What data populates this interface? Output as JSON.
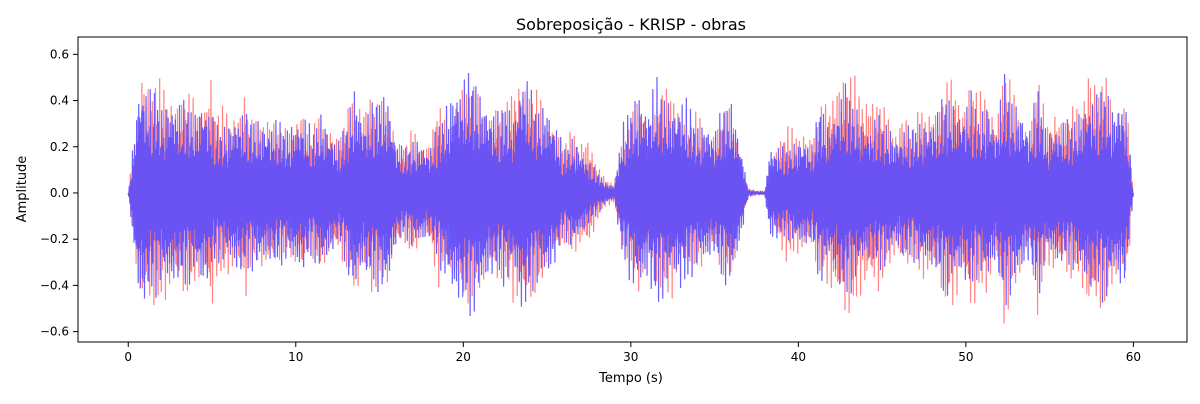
{
  "chart_data": {
    "type": "line",
    "title": "Sobreposição - KRISP - obras",
    "xlabel": "Tempo (s)",
    "ylabel": "Amplitude",
    "xlim": [
      -3,
      63.2
    ],
    "ylim": [
      -0.645,
      0.675
    ],
    "xticks": [
      0,
      10,
      20,
      30,
      40,
      50,
      60
    ],
    "xtick_labels": [
      "0",
      "10",
      "20",
      "30",
      "40",
      "50",
      "60"
    ],
    "yticks": [
      -0.6,
      -0.4,
      -0.2,
      0.0,
      0.2,
      0.4,
      0.6
    ],
    "ytick_labels": [
      "−0.6",
      "−0.4",
      "−0.2",
      "0.0",
      "0.2",
      "0.4",
      "0.6"
    ],
    "grid": false,
    "legend": "none",
    "series": [
      {
        "color": "#ff6f6f",
        "opacity": 0.85,
        "x_step": 0.25,
        "envelope": [
          [
            0.0,
            0.0
          ],
          [
            0.8,
            -0.55
          ],
          [
            1.0,
            0.52
          ],
          [
            1.3,
            -0.5
          ],
          [
            1.8,
            0.5
          ],
          [
            2.2,
            -0.48
          ],
          [
            2.6,
            0.42
          ],
          [
            2.9,
            -0.42
          ],
          [
            3.3,
            0.45
          ],
          [
            3.7,
            -0.44
          ],
          [
            4.2,
            0.38
          ],
          [
            4.6,
            -0.4
          ],
          [
            5.0,
            0.58
          ],
          [
            5.2,
            -0.37
          ],
          [
            5.7,
            0.38
          ],
          [
            6.2,
            -0.35
          ],
          [
            6.6,
            0.37
          ],
          [
            6.7,
            -0.38
          ],
          [
            7.0,
            0.5
          ],
          [
            7.2,
            -0.34
          ],
          [
            7.7,
            0.31
          ],
          [
            8.2,
            -0.35
          ],
          [
            8.6,
            0.35
          ],
          [
            9.0,
            -0.3
          ],
          [
            9.6,
            0.27
          ],
          [
            10.0,
            -0.33
          ],
          [
            10.4,
            0.39
          ],
          [
            10.8,
            -0.25
          ],
          [
            11.2,
            0.33
          ],
          [
            11.6,
            -0.32
          ],
          [
            12.0,
            0.3
          ],
          [
            12.5,
            -0.26
          ],
          [
            12.8,
            0.31
          ],
          [
            13.3,
            -0.4
          ],
          [
            13.7,
            0.44
          ],
          [
            14.0,
            -0.38
          ],
          [
            14.5,
            0.47
          ],
          [
            14.9,
            -0.4
          ],
          [
            15.5,
            0.4
          ],
          [
            16.0,
            -0.25
          ],
          [
            16.5,
            0.22
          ],
          [
            17.0,
            -0.29
          ],
          [
            17.5,
            0.2
          ],
          [
            18.0,
            -0.24
          ],
          [
            18.5,
            0.43
          ],
          [
            19.0,
            -0.28
          ],
          [
            19.5,
            0.4
          ],
          [
            20.0,
            -0.52
          ],
          [
            20.5,
            0.48
          ],
          [
            21.0,
            -0.43
          ],
          [
            21.5,
            0.36
          ],
          [
            22.0,
            -0.41
          ],
          [
            22.5,
            0.36
          ],
          [
            23.0,
            -0.5
          ],
          [
            23.5,
            0.52
          ],
          [
            24.0,
            -0.47
          ],
          [
            24.5,
            0.45
          ],
          [
            25.0,
            -0.31
          ],
          [
            25.5,
            0.3
          ],
          [
            26.0,
            -0.22
          ],
          [
            26.5,
            0.28
          ],
          [
            27.0,
            -0.24
          ],
          [
            27.5,
            0.25
          ],
          [
            28.0,
            -0.12
          ],
          [
            28.5,
            0.06
          ],
          [
            29.0,
            -0.05
          ],
          [
            29.5,
            0.25
          ],
          [
            30.0,
            -0.32
          ],
          [
            30.5,
            0.45
          ],
          [
            31.0,
            -0.3
          ],
          [
            31.5,
            0.4
          ],
          [
            32.0,
            -0.45
          ],
          [
            32.5,
            0.48
          ],
          [
            33.0,
            -0.35
          ],
          [
            33.5,
            0.3
          ],
          [
            34.0,
            -0.37
          ],
          [
            34.5,
            0.28
          ],
          [
            35.0,
            -0.28
          ],
          [
            35.5,
            0.37
          ],
          [
            36.0,
            -0.37
          ],
          [
            36.5,
            0.2
          ],
          [
            37.0,
            -0.02
          ],
          [
            37.5,
            0.01
          ],
          [
            38.0,
            -0.01
          ],
          [
            38.3,
            0.12
          ],
          [
            38.8,
            -0.23
          ],
          [
            39.3,
            0.31
          ],
          [
            39.8,
            -0.27
          ],
          [
            40.3,
            0.28
          ],
          [
            40.8,
            -0.25
          ],
          [
            41.3,
            0.37
          ],
          [
            41.8,
            -0.42
          ],
          [
            42.3,
            0.5
          ],
          [
            42.8,
            -0.55
          ],
          [
            43.3,
            0.52
          ],
          [
            43.8,
            -0.45
          ],
          [
            44.3,
            0.43
          ],
          [
            44.8,
            -0.44
          ],
          [
            45.3,
            0.34
          ],
          [
            45.8,
            -0.28
          ],
          [
            46.3,
            0.38
          ],
          [
            46.8,
            -0.28
          ],
          [
            47.3,
            0.39
          ],
          [
            47.8,
            -0.38
          ],
          [
            48.3,
            0.38
          ],
          [
            48.8,
            -0.48
          ],
          [
            49.3,
            0.52
          ],
          [
            49.8,
            -0.38
          ],
          [
            50.3,
            0.53
          ],
          [
            50.8,
            -0.44
          ],
          [
            51.3,
            0.45
          ],
          [
            51.8,
            -0.31
          ],
          [
            52.3,
            0.6
          ],
          [
            52.8,
            -0.45
          ],
          [
            53.3,
            0.35
          ],
          [
            53.8,
            -0.27
          ],
          [
            54.3,
            0.55
          ],
          [
            54.8,
            -0.3
          ],
          [
            55.3,
            0.38
          ],
          [
            55.8,
            -0.33
          ],
          [
            56.3,
            0.39
          ],
          [
            56.8,
            -0.36
          ],
          [
            57.3,
            0.58
          ],
          [
            57.8,
            -0.5
          ],
          [
            58.3,
            0.52
          ],
          [
            58.8,
            -0.39
          ],
          [
            59.3,
            0.4
          ],
          [
            59.6,
            -0.44
          ],
          [
            60.0,
            0.0
          ]
        ]
      },
      {
        "color": "#5a4dff",
        "opacity": 0.9,
        "x_step": 0.25,
        "envelope": [
          [
            0.0,
            0.0
          ],
          [
            0.6,
            -0.47
          ],
          [
            0.8,
            0.53
          ],
          [
            1.2,
            -0.45
          ],
          [
            1.6,
            0.47
          ],
          [
            2.0,
            -0.38
          ],
          [
            2.5,
            0.43
          ],
          [
            3.0,
            -0.4
          ],
          [
            3.5,
            0.42
          ],
          [
            4.0,
            -0.36
          ],
          [
            4.5,
            0.45
          ],
          [
            5.0,
            -0.34
          ],
          [
            5.5,
            0.3
          ],
          [
            6.0,
            -0.31
          ],
          [
            6.5,
            0.37
          ],
          [
            7.0,
            -0.35
          ],
          [
            7.5,
            0.34
          ],
          [
            8.0,
            -0.32
          ],
          [
            8.5,
            0.31
          ],
          [
            9.0,
            -0.33
          ],
          [
            9.5,
            0.29
          ],
          [
            10.0,
            -0.34
          ],
          [
            10.5,
            0.35
          ],
          [
            11.0,
            -0.28
          ],
          [
            11.5,
            0.36
          ],
          [
            12.0,
            -0.3
          ],
          [
            12.5,
            0.22
          ],
          [
            13.0,
            -0.32
          ],
          [
            13.5,
            0.48
          ],
          [
            14.0,
            -0.34
          ],
          [
            14.5,
            0.39
          ],
          [
            15.0,
            -0.44
          ],
          [
            15.5,
            0.44
          ],
          [
            16.0,
            -0.23
          ],
          [
            16.5,
            0.2
          ],
          [
            17.0,
            -0.24
          ],
          [
            17.5,
            0.24
          ],
          [
            18.0,
            -0.2
          ],
          [
            18.5,
            0.31
          ],
          [
            19.0,
            -0.4
          ],
          [
            19.5,
            0.5
          ],
          [
            20.0,
            -0.5
          ],
          [
            20.5,
            0.56
          ],
          [
            21.0,
            -0.45
          ],
          [
            21.5,
            0.4
          ],
          [
            22.0,
            -0.35
          ],
          [
            22.5,
            0.42
          ],
          [
            23.0,
            -0.34
          ],
          [
            23.5,
            0.56
          ],
          [
            24.0,
            -0.47
          ],
          [
            24.5,
            0.38
          ],
          [
            25.0,
            -0.41
          ],
          [
            25.5,
            0.32
          ],
          [
            26.0,
            -0.2
          ],
          [
            26.5,
            0.25
          ],
          [
            27.0,
            -0.2
          ],
          [
            27.5,
            0.14
          ],
          [
            28.0,
            -0.1
          ],
          [
            28.5,
            0.05
          ],
          [
            29.0,
            -0.03
          ],
          [
            29.5,
            0.3
          ],
          [
            30.0,
            -0.4
          ],
          [
            30.5,
            0.45
          ],
          [
            31.0,
            -0.4
          ],
          [
            31.5,
            0.52
          ],
          [
            32.0,
            -0.45
          ],
          [
            32.5,
            0.38
          ],
          [
            33.0,
            -0.45
          ],
          [
            33.5,
            0.4
          ],
          [
            34.0,
            -0.3
          ],
          [
            34.5,
            0.33
          ],
          [
            35.0,
            -0.27
          ],
          [
            35.5,
            0.4
          ],
          [
            36.0,
            -0.41
          ],
          [
            36.5,
            0.25
          ],
          [
            37.0,
            -0.02
          ],
          [
            37.5,
            0.01
          ],
          [
            38.0,
            -0.01
          ],
          [
            38.3,
            0.22
          ],
          [
            38.8,
            -0.21
          ],
          [
            39.3,
            0.2
          ],
          [
            39.8,
            -0.23
          ],
          [
            40.3,
            0.25
          ],
          [
            40.8,
            -0.21
          ],
          [
            41.3,
            0.42
          ],
          [
            41.8,
            -0.3
          ],
          [
            42.3,
            0.4
          ],
          [
            42.8,
            -0.48
          ],
          [
            43.3,
            0.42
          ],
          [
            43.8,
            -0.33
          ],
          [
            44.3,
            0.3
          ],
          [
            44.8,
            -0.35
          ],
          [
            45.3,
            0.32
          ],
          [
            45.8,
            -0.25
          ],
          [
            46.3,
            0.29
          ],
          [
            46.8,
            -0.3
          ],
          [
            47.3,
            0.32
          ],
          [
            47.8,
            -0.33
          ],
          [
            48.3,
            0.36
          ],
          [
            48.8,
            -0.47
          ],
          [
            49.3,
            0.4
          ],
          [
            49.8,
            -0.38
          ],
          [
            50.3,
            0.45
          ],
          [
            50.8,
            -0.35
          ],
          [
            51.3,
            0.42
          ],
          [
            51.8,
            -0.3
          ],
          [
            52.3,
            0.53
          ],
          [
            52.8,
            -0.42
          ],
          [
            53.3,
            0.38
          ],
          [
            53.8,
            -0.3
          ],
          [
            54.3,
            0.48
          ],
          [
            54.8,
            -0.28
          ],
          [
            55.3,
            0.31
          ],
          [
            55.8,
            -0.32
          ],
          [
            56.3,
            0.33
          ],
          [
            56.8,
            -0.37
          ],
          [
            57.3,
            0.44
          ],
          [
            57.8,
            -0.43
          ],
          [
            58.3,
            0.5
          ],
          [
            58.8,
            -0.38
          ],
          [
            59.3,
            0.45
          ],
          [
            59.6,
            -0.36
          ],
          [
            60.0,
            0.0
          ]
        ]
      }
    ]
  }
}
